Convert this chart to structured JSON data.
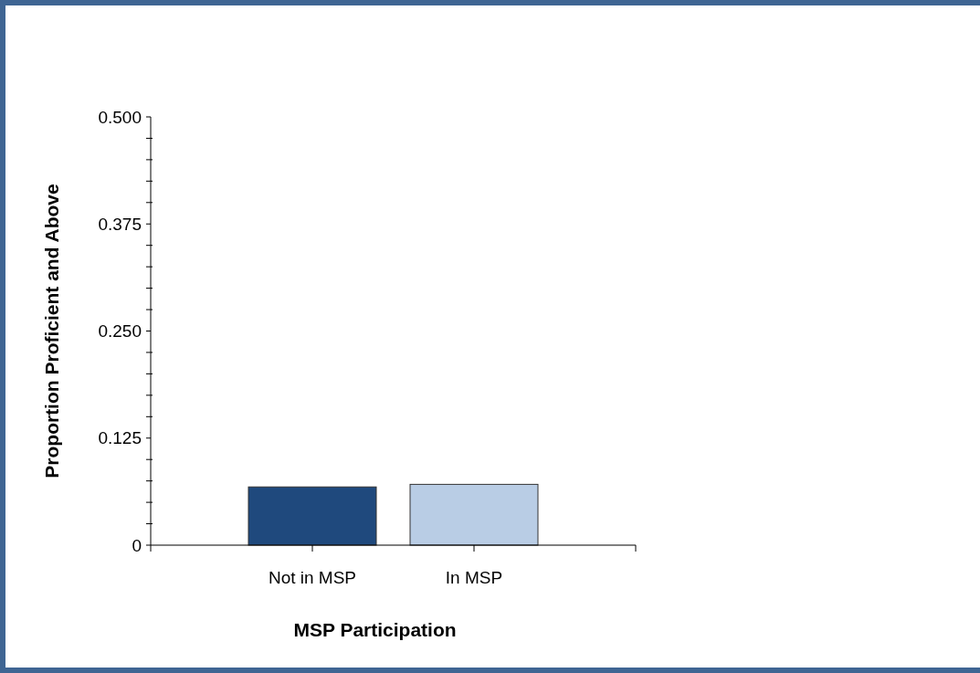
{
  "chart_data": {
    "type": "bar",
    "xlabel": "MSP Participation",
    "ylabel": "Proportion Proficient and Above",
    "categories": [
      "Not in MSP",
      "In MSP"
    ],
    "series": [
      {
        "colors": [
          "#1f497d",
          "#b9cde5"
        ],
        "values": [
          0.068,
          0.071
        ]
      }
    ],
    "ylim": [
      0,
      0.5
    ],
    "yticks": [
      0,
      {
        "value": 0.025,
        "label": null
      },
      {
        "value": 0.05,
        "label": null
      },
      {
        "value": 0.075,
        "label": null
      },
      {
        "value": 0.1,
        "label": null
      },
      0.125,
      {
        "value": 0.15,
        "label": null
      },
      {
        "value": 0.175,
        "label": null
      },
      {
        "value": 0.2,
        "label": null
      },
      {
        "value": 0.225,
        "label": null
      },
      {
        "value": 0.25,
        "label": "0.250"
      },
      {
        "value": 0.275,
        "label": null
      },
      {
        "value": 0.3,
        "label": null
      },
      {
        "value": 0.325,
        "label": null
      },
      {
        "value": 0.35,
        "label": null
      },
      0.375,
      {
        "value": 0.4,
        "label": null
      },
      {
        "value": 0.425,
        "label": null
      },
      {
        "value": 0.45,
        "label": null
      },
      {
        "value": 0.475,
        "label": null
      },
      {
        "value": 0.5,
        "label": "0.500"
      }
    ],
    "grid": false
  }
}
